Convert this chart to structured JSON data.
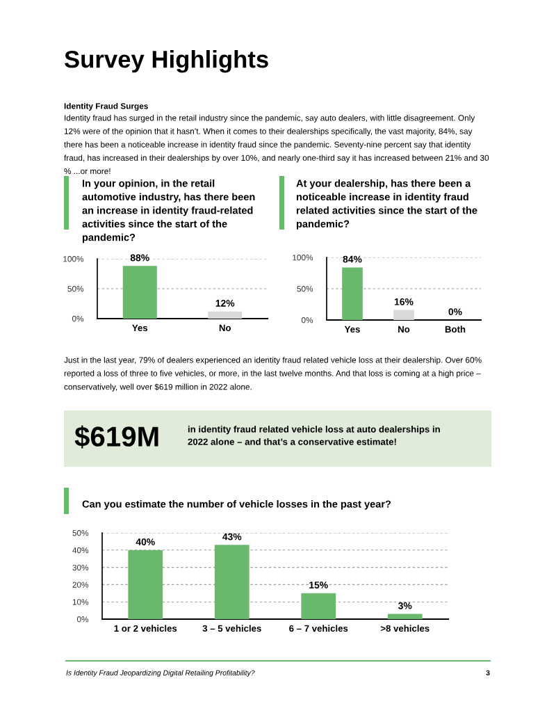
{
  "chart_data": [
    {
      "type": "other",
      "title": "Survey Highlights",
      "annotations": [
        "Identity Fraud Surges",
        "Identity fraud has surged in the retail industry since the pandemic, say auto dealers, with little disagreement. Only 12% were of the opinion that it hasn’t. When it comes to their dealerships specifically, the vast majority, 84%, say there has been a noticeable increase in identity fraud since the pandemic. Seventy-nine percent say that identity fraud, has increased in their dealerships by over 10%, and nearly one-third say it has increased between 21% and 30 % ...or more!"
      ]
    },
    {
      "type": "bar",
      "title": "In your opinion, in the retail automotive industry, has there been an increase in identity fraud-related activities since the start of the pandemic?",
      "categories": [
        "Yes",
        "No"
      ],
      "values": [
        88,
        12
      ],
      "colors": [
        "#6ab86b",
        "#d9d9d9"
      ],
      "value_labels": [
        "88%",
        "12%"
      ],
      "ylim": [
        0,
        100
      ],
      "yticks": [
        {
          "value": 0,
          "label": "0%"
        },
        {
          "value": 50,
          "label": "50%"
        },
        {
          "value": 100,
          "label": "100%"
        }
      ],
      "grid": "y"
    },
    {
      "type": "bar",
      "title": "At your dealership, has there been a noticeable increase in identity fraud related activities since the start of the pandemic?",
      "categories": [
        "Yes",
        "No",
        "Both"
      ],
      "values": [
        84,
        16,
        0
      ],
      "colors": [
        "#6ab86b",
        "#d9d9d9",
        "#d9d9d9"
      ],
      "value_labels": [
        "84%",
        "16%",
        "0%"
      ],
      "ylim": [
        0,
        100
      ],
      "yticks": [
        {
          "value": 0,
          "label": "0%"
        },
        {
          "value": 50,
          "label": "50%"
        },
        {
          "value": 100,
          "label": "100%"
        }
      ],
      "grid": "y"
    },
    {
      "type": "other",
      "annotations": [
        "Just in the last year, 79% of dealers experienced an identity fraud related vehicle loss at their dealership. Over 60% reported a loss of three to five vehicles, or more, in the last twelve months. And that loss is coming at a high price – conservatively, well over $619 million in 2022 alone.",
        "$619M",
        "in identity fraud related vehicle loss at auto dealerships in 2022 alone – and that’s a conservative estimate!"
      ]
    },
    {
      "type": "bar",
      "title": "Can you estimate the number of vehicle losses in the past year?",
      "categories": [
        "1 or 2 vehicles",
        "3 – 5 vehicles",
        "6 – 7 vehicles",
        ">8 vehicles"
      ],
      "values": [
        40,
        43,
        15,
        3
      ],
      "colors": [
        "#6ab86b",
        "#6ab86b",
        "#6ab86b",
        "#6ab86b"
      ],
      "value_labels": [
        "40%",
        "43%",
        "15%",
        "3%"
      ],
      "ylim": [
        0,
        50
      ],
      "yticks": [
        {
          "value": 0,
          "label": "0%"
        },
        {
          "value": 10,
          "label": "10%"
        },
        {
          "value": 20,
          "label": "20%"
        },
        {
          "value": 30,
          "label": "30%"
        },
        {
          "value": 40,
          "label": "40%"
        },
        {
          "value": 50,
          "label": "50%"
        }
      ],
      "grid": "y"
    },
    {
      "type": "other",
      "annotations": [
        "Is Identity Fraud Jeopardizing Digital Retailing Profitability?",
        "3"
      ]
    }
  ]
}
